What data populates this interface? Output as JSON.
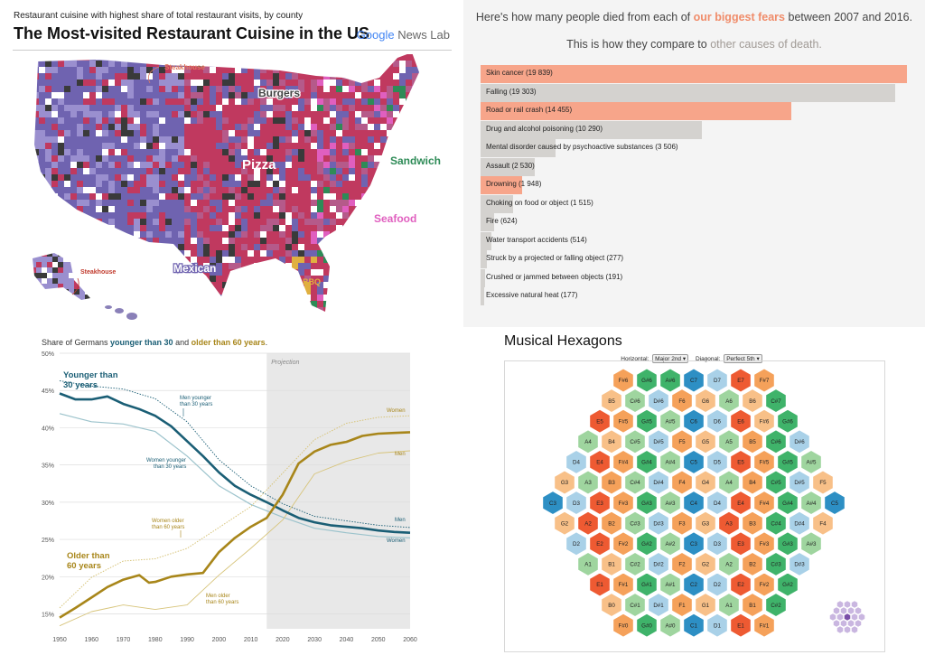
{
  "map": {
    "subtitle": "Restaurant cuisine with highest share of total restaurant visits, by county",
    "title": "The Most-visited Restaurant Cuisine in the US",
    "logo_brand": "Google",
    "logo_product": " News Lab",
    "regions": [
      {
        "label": "Steakhouse",
        "color": "#e07a5f"
      },
      {
        "label": "Burgers",
        "color": "#555555"
      },
      {
        "label": "Pizza",
        "color": "#c0395f"
      },
      {
        "label": "Sandwich",
        "color": "#2e8b57"
      },
      {
        "label": "Seafood",
        "color": "#e05fbf"
      },
      {
        "label": "Mexican",
        "color": "#6f63b0"
      },
      {
        "label": "BBQ",
        "color": "#e0b040"
      },
      {
        "label": "Steakhouse",
        "color": "#c0392b"
      }
    ]
  },
  "fears": {
    "header_line1_pre": "Here's how many people died from each of ",
    "header_line1_em": "our biggest fears",
    "header_line1_post": " between 2007 and 2016.",
    "header_line2_pre": "This is how they compare to ",
    "header_line2_em": "other causes of death.",
    "colors": {
      "fear": "#f7a58a",
      "other": "#d4d2cf",
      "fear_text": "#f08c6a",
      "other_text": "#a09a95"
    },
    "max_value": 19839,
    "causes": [
      {
        "label": "Skin cancer (19 839)",
        "value": 19839,
        "fear": true
      },
      {
        "label": "Falling (19 303)",
        "value": 19303,
        "fear": false
      },
      {
        "label": "Road or rail crash (14 455)",
        "value": 14455,
        "fear": true
      },
      {
        "label": "Drug and alcohol poisoning (10 290)",
        "value": 10290,
        "fear": false
      },
      {
        "label": "Mental disorder caused by psychoactive substances (3 506)",
        "value": 3506,
        "fear": false
      },
      {
        "label": "Assault (2 530)",
        "value": 2530,
        "fear": false
      },
      {
        "label": "Drowning (1 948)",
        "value": 1948,
        "fear": true
      },
      {
        "label": "Choking on food or object (1 515)",
        "value": 1515,
        "fear": false
      },
      {
        "label": "Fire (624)",
        "value": 624,
        "fear": false
      },
      {
        "label": "Water transport accidents (514)",
        "value": 514,
        "fear": false
      },
      {
        "label": "Struck by a projected or falling object (277)",
        "value": 277,
        "fear": false
      },
      {
        "label": "Crushed or jammed between objects (191)",
        "value": 191,
        "fear": false
      },
      {
        "label": "Excessive natural heat (177)",
        "value": 177,
        "fear": false
      }
    ]
  },
  "chart_data": {
    "type": "line",
    "title_pre": "Share of Germans ",
    "title_young": "younger than 30",
    "title_mid": " and ",
    "title_old": "older than 60 years",
    "title_post": ".",
    "xlim": [
      1950,
      2060
    ],
    "ylim": [
      13,
      50
    ],
    "x_ticks": [
      "1950",
      "1960",
      "1970",
      "1980",
      "1990",
      "2000",
      "2010",
      "2020",
      "2030",
      "2040",
      "2050",
      "2060"
    ],
    "y_ticks": [
      "15%",
      "20%",
      "25%",
      "30%",
      "35%",
      "40%",
      "45%",
      "50%"
    ],
    "y_tick_values": [
      15,
      20,
      25,
      30,
      35,
      40,
      45,
      50
    ],
    "x_tick_values": [
      1950,
      1960,
      1970,
      1980,
      1990,
      2000,
      2010,
      2020,
      2030,
      2040,
      2050,
      2060
    ],
    "projection_start": 2015,
    "projection_label": "Projection",
    "colors": {
      "young": "#1a5e75",
      "young_light": "#9cc3cc",
      "old": "#a8861a",
      "old_light": "#d7c47a"
    },
    "series": [
      {
        "name": "Younger than 30 years",
        "style": "main-young",
        "x": [
          1950,
          1955,
          1960,
          1965,
          1970,
          1975,
          1980,
          1985,
          1990,
          1995,
          2000,
          2005,
          2010,
          2015,
          2020,
          2025,
          2030,
          2035,
          2040,
          2045,
          2050,
          2055,
          2060
        ],
        "y": [
          44.6,
          43.8,
          43.8,
          44.2,
          43.2,
          42.5,
          41.6,
          40.2,
          38.2,
          36.2,
          34.0,
          32.2,
          31.0,
          30.0,
          28.9,
          27.9,
          27.3,
          26.9,
          26.7,
          26.5,
          26.2,
          26.0,
          25.9
        ]
      },
      {
        "name": "Men younger than 30 years",
        "style": "dot-young",
        "x": [
          1950,
          1960,
          1970,
          1980,
          1990,
          2000,
          2010,
          2020,
          2030,
          2040,
          2050,
          2060
        ],
        "y": [
          46.3,
          45.6,
          45.2,
          43.9,
          40.8,
          35.7,
          32.2,
          29.8,
          28.1,
          27.5,
          26.9,
          26.6
        ]
      },
      {
        "name": "Women younger than 30 years",
        "style": "light-young",
        "x": [
          1950,
          1960,
          1970,
          1980,
          1990,
          2000,
          2010,
          2020,
          2030,
          2040,
          2050,
          2060
        ],
        "y": [
          41.9,
          40.8,
          40.5,
          39.5,
          36.2,
          32.2,
          29.7,
          28.0,
          26.5,
          25.9,
          25.4,
          25.2
        ]
      },
      {
        "name": "Older than 60 years",
        "style": "main-old",
        "x": [
          1950,
          1955,
          1960,
          1965,
          1970,
          1975,
          1978,
          1980,
          1985,
          1990,
          1995,
          2000,
          2005,
          2010,
          2015,
          2020,
          2025,
          2030,
          2035,
          2040,
          2045,
          2050,
          2055,
          2060
        ],
        "y": [
          14.5,
          15.8,
          17.2,
          18.6,
          19.6,
          20.2,
          19.2,
          19.3,
          20.0,
          20.3,
          20.5,
          23.3,
          25.2,
          26.7,
          27.9,
          31.0,
          35.2,
          36.8,
          37.7,
          38.1,
          38.9,
          39.2,
          39.3,
          39.4
        ]
      },
      {
        "name": "Women older than 60 years",
        "style": "dot-old",
        "x": [
          1950,
          1960,
          1970,
          1980,
          1990,
          2000,
          2010,
          2020,
          2030,
          2040,
          2050,
          2060
        ],
        "y": [
          15.8,
          19.9,
          22.1,
          22.4,
          23.8,
          26.6,
          29.4,
          33.9,
          38.4,
          40.6,
          41.4,
          41.6
        ]
      },
      {
        "name": "Men older than 60 years",
        "style": "thin-old",
        "x": [
          1950,
          1960,
          1970,
          1980,
          1990,
          2000,
          2010,
          2020,
          2030,
          2040,
          2050,
          2060
        ],
        "y": [
          13.4,
          15.3,
          16.2,
          15.6,
          16.2,
          20.2,
          23.8,
          27.6,
          33.8,
          35.5,
          36.6,
          36.9
        ]
      }
    ],
    "annotations": [
      {
        "text": "Younger than",
        "kind": "big-young"
      },
      {
        "text": "30 years",
        "kind": "big-young"
      },
      {
        "text": "Men younger",
        "kind": "small-young"
      },
      {
        "text": "than 30 years",
        "kind": "small-young"
      },
      {
        "text": "Women younger",
        "kind": "small-young"
      },
      {
        "text": "than 30 years",
        "kind": "small-young"
      },
      {
        "text": "Women older",
        "kind": "small-old"
      },
      {
        "text": "than 60 years",
        "kind": "small-old"
      },
      {
        "text": "Older than",
        "kind": "big-old"
      },
      {
        "text": "60 years",
        "kind": "big-old"
      },
      {
        "text": "Men older",
        "kind": "small-old"
      },
      {
        "text": "than 60 years",
        "kind": "small-old"
      },
      {
        "text": "Women",
        "kind": "end-old"
      },
      {
        "text": "Men",
        "kind": "end-old"
      },
      {
        "text": "Men",
        "kind": "end-young"
      },
      {
        "text": "Women",
        "kind": "end-young"
      }
    ]
  },
  "hex": {
    "title": "Musical Hexagons",
    "horizontal_label": "Horizontal:",
    "horizontal_value": "Major 2nd",
    "diagonal_label": "Diagonal:",
    "diagonal_value": "Perfect 5th",
    "colors": {
      "orange": "#f5a15a",
      "green": "#3fb36a",
      "blue": "#2d8fc4",
      "lightblue": "#a9d1e8",
      "red": "#ee5a32",
      "lightgreen": "#9fd59f",
      "lightorange": "#f8c088",
      "purple": "#7a4fa8",
      "lightpurple": "#c9b6e0"
    },
    "rows": [
      {
        "cells": [
          [
            "F#6",
            "orange"
          ],
          [
            "G#6",
            "green"
          ],
          [
            "A#6",
            "green"
          ],
          [
            "C7",
            "blue"
          ],
          [
            "D7",
            "lightblue"
          ],
          [
            "E7",
            "red"
          ],
          [
            "F#7",
            "orange"
          ]
        ]
      },
      {
        "cells": [
          [
            "B5",
            "lightorange"
          ],
          [
            "C#6",
            "lightgreen"
          ],
          [
            "D#6",
            "lightblue"
          ],
          [
            "F6",
            "orange"
          ],
          [
            "G6",
            "lightorange"
          ],
          [
            "A6",
            "lightgreen"
          ],
          [
            "B6",
            "lightorange"
          ],
          [
            "C#7",
            "green"
          ]
        ]
      },
      {
        "cells": [
          [
            "E5",
            "red"
          ],
          [
            "F#5",
            "orange"
          ],
          [
            "G#5",
            "green"
          ],
          [
            "A#5",
            "lightgreen"
          ],
          [
            "C6",
            "blue"
          ],
          [
            "D6",
            "lightblue"
          ],
          [
            "E6",
            "red"
          ],
          [
            "F#6",
            "lightorange"
          ],
          [
            "G#6",
            "green"
          ]
        ]
      },
      {
        "cells": [
          [
            "A4",
            "lightgreen"
          ],
          [
            "B4",
            "lightorange"
          ],
          [
            "C#5",
            "lightgreen"
          ],
          [
            "D#5",
            "lightblue"
          ],
          [
            "F5",
            "orange"
          ],
          [
            "G5",
            "lightorange"
          ],
          [
            "A5",
            "lightgreen"
          ],
          [
            "B5",
            "orange"
          ],
          [
            "C#6",
            "green"
          ],
          [
            "D#6",
            "lightblue"
          ]
        ]
      },
      {
        "cells": [
          [
            "D4",
            "lightblue"
          ],
          [
            "E4",
            "red"
          ],
          [
            "F#4",
            "orange"
          ],
          [
            "G#4",
            "green"
          ],
          [
            "A#4",
            "lightgreen"
          ],
          [
            "C5",
            "blue"
          ],
          [
            "D5",
            "lightblue"
          ],
          [
            "E5",
            "red"
          ],
          [
            "F#5",
            "orange"
          ],
          [
            "G#5",
            "green"
          ],
          [
            "A#5",
            "lightgreen"
          ]
        ]
      },
      {
        "cells": [
          [
            "G3",
            "lightorange"
          ],
          [
            "A3",
            "lightgreen"
          ],
          [
            "B3",
            "orange"
          ],
          [
            "C#4",
            "lightgreen"
          ],
          [
            "D#4",
            "lightblue"
          ],
          [
            "F4",
            "orange"
          ],
          [
            "G4",
            "lightorange"
          ],
          [
            "A4",
            "lightgreen"
          ],
          [
            "B4",
            "orange"
          ],
          [
            "C#5",
            "green"
          ],
          [
            "D#5",
            "lightblue"
          ],
          [
            "F5",
            "lightorange"
          ]
        ]
      },
      {
        "cells": [
          [
            "C3",
            "blue"
          ],
          [
            "D3",
            "lightblue"
          ],
          [
            "E3",
            "red"
          ],
          [
            "F#3",
            "orange"
          ],
          [
            "G#3",
            "green"
          ],
          [
            "A#3",
            "lightgreen"
          ],
          [
            "C4",
            "blue"
          ],
          [
            "D4",
            "lightblue"
          ],
          [
            "E4",
            "red"
          ],
          [
            "F#4",
            "orange"
          ],
          [
            "G#4",
            "green"
          ],
          [
            "A#4",
            "lightgreen"
          ],
          [
            "C5",
            "blue"
          ]
        ]
      },
      {
        "cells": [
          [
            "G2",
            "lightorange"
          ],
          [
            "A2",
            "red"
          ],
          [
            "B2",
            "orange"
          ],
          [
            "C#3",
            "lightgreen"
          ],
          [
            "D#3",
            "lightblue"
          ],
          [
            "F3",
            "orange"
          ],
          [
            "G3",
            "lightorange"
          ],
          [
            "A3",
            "red"
          ],
          [
            "B3",
            "orange"
          ],
          [
            "C#4",
            "green"
          ],
          [
            "D#4",
            "lightblue"
          ],
          [
            "F4",
            "lightorange"
          ]
        ]
      },
      {
        "cells": [
          [
            "D2",
            "lightblue"
          ],
          [
            "E2",
            "red"
          ],
          [
            "F#2",
            "orange"
          ],
          [
            "G#2",
            "green"
          ],
          [
            "A#2",
            "lightgreen"
          ],
          [
            "C3",
            "blue"
          ],
          [
            "D3",
            "lightblue"
          ],
          [
            "E3",
            "red"
          ],
          [
            "F#3",
            "orange"
          ],
          [
            "G#3",
            "green"
          ],
          [
            "A#3",
            "lightgreen"
          ]
        ]
      },
      {
        "cells": [
          [
            "A1",
            "lightgreen"
          ],
          [
            "B1",
            "lightorange"
          ],
          [
            "C#2",
            "lightgreen"
          ],
          [
            "D#2",
            "lightblue"
          ],
          [
            "F2",
            "orange"
          ],
          [
            "G2",
            "lightorange"
          ],
          [
            "A2",
            "lightgreen"
          ],
          [
            "B2",
            "orange"
          ],
          [
            "C#3",
            "green"
          ],
          [
            "D#3",
            "lightblue"
          ]
        ]
      },
      {
        "cells": [
          [
            "E1",
            "red"
          ],
          [
            "F#1",
            "orange"
          ],
          [
            "G#1",
            "green"
          ],
          [
            "A#1",
            "lightgreen"
          ],
          [
            "C2",
            "blue"
          ],
          [
            "D2",
            "lightblue"
          ],
          [
            "E2",
            "red"
          ],
          [
            "F#2",
            "orange"
          ],
          [
            "G#2",
            "green"
          ]
        ]
      },
      {
        "cells": [
          [
            "B0",
            "lightorange"
          ],
          [
            "C#1",
            "lightgreen"
          ],
          [
            "D#1",
            "lightblue"
          ],
          [
            "F1",
            "orange"
          ],
          [
            "G1",
            "lightorange"
          ],
          [
            "A1",
            "lightgreen"
          ],
          [
            "B1",
            "orange"
          ],
          [
            "C#2",
            "green"
          ]
        ]
      },
      {
        "cells": [
          [
            "F#0",
            "orange"
          ],
          [
            "G#0",
            "green"
          ],
          [
            "A#0",
            "lightgreen"
          ],
          [
            "C1",
            "blue"
          ],
          [
            "D1",
            "lightblue"
          ],
          [
            "E1",
            "red"
          ],
          [
            "F#1",
            "orange"
          ]
        ]
      }
    ]
  }
}
